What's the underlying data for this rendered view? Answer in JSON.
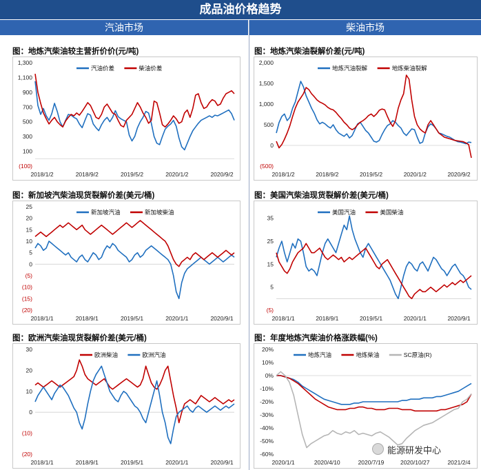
{
  "header": {
    "title": "成品油价格趋势"
  },
  "sections": {
    "left": "汽油市场",
    "right": "柴油市场"
  },
  "watermark": "能源研发中心",
  "chart_data": [
    {
      "id": "c1",
      "type": "line",
      "title": "图：地炼汽柴油较主营折价价(元/吨)",
      "yticks": [
        1300,
        1100,
        900,
        700,
        500,
        300,
        100,
        -100
      ],
      "ytick_labels": [
        "1,300",
        "1,100",
        "900",
        "700",
        "500",
        "300",
        "100",
        "(100)"
      ],
      "ylim": [
        -100,
        1300
      ],
      "xticks": [
        "2018/1/2",
        "2018/9/2",
        "2019/5/2",
        "2020/1/2",
        "2020/9/2"
      ],
      "series": [
        {
          "name": "汽油价差",
          "color": "#1f6fbf",
          "values": [
            1050,
            720,
            600,
            680,
            580,
            520,
            610,
            750,
            640,
            500,
            430,
            520,
            600,
            590,
            560,
            540,
            470,
            420,
            520,
            610,
            590,
            470,
            420,
            380,
            460,
            520,
            560,
            500,
            560,
            650,
            570,
            540,
            520,
            500,
            320,
            240,
            300,
            420,
            500,
            560,
            640,
            620,
            480,
            300,
            210,
            190,
            300,
            400,
            440,
            470,
            520,
            440,
            280,
            160,
            120,
            210,
            300,
            380,
            430,
            480,
            520,
            540,
            560,
            580,
            560,
            590,
            580,
            600,
            620,
            640,
            660,
            610,
            520
          ]
        },
        {
          "name": "柴油价差",
          "color": "#c00000",
          "values": [
            1150,
            900,
            750,
            620,
            540,
            470,
            520,
            560,
            500,
            460,
            430,
            510,
            560,
            600,
            580,
            620,
            590,
            640,
            700,
            760,
            720,
            640,
            560,
            540,
            600,
            700,
            740,
            680,
            620,
            600,
            520,
            450,
            430,
            520,
            560,
            600,
            680,
            760,
            700,
            620,
            560,
            480,
            520,
            780,
            760,
            620,
            460,
            430,
            470,
            520,
            580,
            540,
            480,
            500,
            620,
            660,
            560,
            680,
            860,
            880,
            760,
            680,
            700,
            760,
            800,
            780,
            720,
            740,
            820,
            880,
            900,
            920,
            880
          ]
        }
      ]
    },
    {
      "id": "c2",
      "type": "line",
      "title": "图：地炼汽柴油裂解价差(元/吨)",
      "yticks": [
        2000,
        1500,
        1000,
        500,
        0,
        -500
      ],
      "ytick_labels": [
        "2,000",
        "1,500",
        "1,000",
        "500",
        "0",
        "(500)"
      ],
      "ylim": [
        -500,
        2000
      ],
      "xticks": [
        "2018/1/2",
        "2018/9/2",
        "2019/5/2",
        "2020/1/2",
        "2020/9/2"
      ],
      "series": [
        {
          "name": "地炼汽油裂解",
          "color": "#1f6fbf",
          "values": [
            300,
            550,
            700,
            760,
            600,
            680,
            900,
            1050,
            1300,
            1550,
            1420,
            1200,
            1050,
            900,
            780,
            620,
            520,
            560,
            520,
            460,
            420,
            500,
            380,
            300,
            260,
            220,
            280,
            180,
            240,
            380,
            520,
            560,
            460,
            360,
            300,
            200,
            100,
            80,
            120,
            260,
            380,
            480,
            520,
            600,
            560,
            480,
            420,
            300,
            240,
            320,
            400,
            380,
            200,
            50,
            80,
            300,
            450,
            520,
            480,
            400,
            300,
            280,
            250,
            220,
            200,
            160,
            120,
            90,
            80,
            60,
            40,
            80,
            70
          ]
        },
        {
          "name": "地炼柴油裂解",
          "color": "#c00000",
          "values": [
            100,
            -60,
            20,
            150,
            300,
            480,
            700,
            900,
            1050,
            1150,
            1250,
            1400,
            1350,
            1250,
            1180,
            1100,
            1050,
            1020,
            980,
            920,
            880,
            860,
            800,
            720,
            650,
            560,
            500,
            420,
            380,
            420,
            500,
            560,
            600,
            650,
            720,
            760,
            700,
            760,
            850,
            880,
            860,
            700,
            560,
            460,
            600,
            900,
            1100,
            1250,
            1700,
            1600,
            1100,
            700,
            500,
            400,
            340,
            300,
            500,
            600,
            500,
            400,
            300,
            250,
            200,
            180,
            160,
            140,
            120,
            110,
            100,
            90,
            60,
            20,
            -300
          ]
        }
      ]
    },
    {
      "id": "c3",
      "type": "line",
      "title": "图：新加坡汽柴油现货裂解价差(美元/桶)",
      "yticks": [
        25,
        20,
        15,
        10,
        5,
        0,
        -5,
        -10,
        -15,
        -20
      ],
      "ytick_labels": [
        "25",
        "20",
        "15",
        "10",
        "5",
        "0",
        "(5)",
        "(10)",
        "(15)",
        "(20)"
      ],
      "ylim": [
        -20,
        25
      ],
      "xticks": [
        "2018/1/1",
        "2018/9/1",
        "2019/5/1",
        "2020/1/1",
        "2020/9/1"
      ],
      "series": [
        {
          "name": "新加坡汽油",
          "color": "#1f6fbf",
          "values": [
            7,
            9,
            8,
            6,
            7,
            10,
            9,
            8,
            7,
            6,
            5,
            4,
            5,
            3,
            2,
            1,
            3,
            4,
            2,
            1,
            3,
            5,
            4,
            2,
            3,
            6,
            8,
            7,
            9,
            8,
            6,
            5,
            4,
            3,
            1,
            2,
            4,
            5,
            3,
            4,
            6,
            7,
            8,
            7,
            6,
            5,
            4,
            3,
            2,
            0,
            -5,
            -12,
            -15,
            -8,
            -4,
            -2,
            -1,
            0,
            1,
            2,
            3,
            2,
            1,
            0,
            1,
            2,
            3,
            2,
            1,
            2,
            3,
            4,
            3
          ]
        },
        {
          "name": "新加坡柴油",
          "color": "#c00000",
          "values": [
            12,
            13,
            14,
            13,
            12,
            13,
            14,
            15,
            16,
            17,
            16,
            17,
            18,
            17,
            16,
            15,
            16,
            17,
            15,
            14,
            13,
            14,
            15,
            16,
            17,
            16,
            15,
            14,
            13,
            14,
            15,
            16,
            17,
            18,
            17,
            16,
            17,
            18,
            19,
            18,
            17,
            16,
            15,
            14,
            13,
            12,
            11,
            10,
            8,
            5,
            2,
            0,
            -1,
            1,
            2,
            3,
            2,
            4,
            5,
            4,
            3,
            2,
            3,
            4,
            5,
            4,
            3,
            4,
            5,
            6,
            5,
            4,
            5
          ]
        }
      ]
    },
    {
      "id": "c4",
      "type": "line",
      "title": "图：美国汽柴油现货裂解价差(美元/桶)",
      "yticks": [
        35,
        25,
        15,
        5,
        -5
      ],
      "ytick_labels": [
        "35",
        "25",
        "15",
        "5",
        "(5)"
      ],
      "ylim": [
        -5,
        40
      ],
      "xticks": [
        "2018/1/1",
        "2018/9/1",
        "2019/5/1",
        "2020/1/1",
        "2020/9/1"
      ],
      "series": [
        {
          "name": "美国汽油",
          "color": "#1f6fbf",
          "values": [
            18,
            22,
            25,
            20,
            16,
            20,
            24,
            22,
            26,
            25,
            20,
            14,
            12,
            13,
            12,
            10,
            15,
            20,
            24,
            26,
            24,
            22,
            20,
            24,
            28,
            32,
            30,
            36,
            30,
            26,
            23,
            20,
            18,
            22,
            24,
            22,
            20,
            18,
            16,
            14,
            12,
            10,
            8,
            5,
            2,
            0,
            5,
            10,
            14,
            16,
            15,
            13,
            12,
            15,
            16,
            14,
            12,
            15,
            18,
            17,
            15,
            13,
            12,
            10,
            12,
            14,
            15,
            13,
            11,
            10,
            8,
            5,
            4
          ]
        },
        {
          "name": "美国柴油",
          "color": "#c00000",
          "values": [
            20,
            16,
            14,
            12,
            11,
            13,
            16,
            18,
            20,
            21,
            22,
            24,
            22,
            20,
            20,
            21,
            22,
            20,
            18,
            17,
            18,
            19,
            18,
            17,
            18,
            16,
            17,
            18,
            17,
            18,
            19,
            20,
            21,
            22,
            20,
            18,
            16,
            14,
            13,
            15,
            16,
            17,
            15,
            13,
            11,
            9,
            7,
            5,
            3,
            1,
            0,
            2,
            3,
            4,
            3,
            3,
            4,
            5,
            4,
            3,
            4,
            5,
            6,
            5,
            6,
            7,
            6,
            7,
            8,
            7,
            8,
            9,
            10
          ]
        }
      ]
    },
    {
      "id": "c5",
      "type": "line",
      "title": "图：欧洲汽柴油现货裂解价差(美元/桶)",
      "yticks": [
        30,
        20,
        10,
        0,
        -10,
        -20
      ],
      "ytick_labels": [
        "30",
        "20",
        "10",
        "0",
        "(10)",
        "(20)"
      ],
      "ylim": [
        -20,
        30
      ],
      "xticks": [
        "2018/1/1",
        "2018/9/1",
        "2019/5/1",
        "2020/1/1",
        "2020/9/1"
      ],
      "series": [
        {
          "name": "欧洲柴油",
          "color": "#c00000",
          "values": [
            13,
            14,
            13,
            12,
            13,
            14,
            15,
            14,
            13,
            12,
            13,
            14,
            15,
            16,
            17,
            20,
            25,
            22,
            18,
            16,
            15,
            14,
            13,
            14,
            15,
            16,
            14,
            12,
            11,
            12,
            13,
            14,
            15,
            16,
            15,
            14,
            13,
            12,
            13,
            16,
            22,
            18,
            14,
            12,
            11,
            13,
            16,
            20,
            22,
            15,
            8,
            2,
            -5,
            0,
            4,
            5,
            6,
            5,
            4,
            6,
            8,
            7,
            6,
            5,
            6,
            7,
            6,
            5,
            4,
            5,
            6,
            5,
            6
          ]
        },
        {
          "name": "欧洲汽油",
          "color": "#1f6fbf",
          "values": [
            5,
            8,
            10,
            12,
            10,
            8,
            6,
            9,
            11,
            13,
            12,
            10,
            8,
            5,
            2,
            0,
            -5,
            -8,
            -3,
            4,
            10,
            15,
            18,
            20,
            22,
            18,
            14,
            10,
            8,
            6,
            5,
            8,
            10,
            9,
            7,
            5,
            3,
            2,
            0,
            -3,
            -5,
            0,
            5,
            10,
            15,
            8,
            0,
            -5,
            -12,
            -15,
            -8,
            -2,
            0,
            1,
            2,
            3,
            1,
            0,
            2,
            3,
            2,
            1,
            0,
            1,
            2,
            3,
            2,
            1,
            2,
            3,
            2,
            3,
            4
          ]
        }
      ]
    },
    {
      "id": "c6",
      "type": "line",
      "title": "图：年度地炼汽柴油价格涨跌幅(%)",
      "yticks": [
        20,
        10,
        0,
        -10,
        -20,
        -30,
        -40,
        -50,
        -60
      ],
      "ytick_labels": [
        "20%",
        "10%",
        "0%",
        "-10%",
        "-20%",
        "-30%",
        "-40%",
        "-50%",
        "-60%"
      ],
      "ylim": [
        -60,
        20
      ],
      "xticks": [
        "2020/1/1",
        "2020/4/10",
        "2020/7/19",
        "2020/10/27",
        "2021/2/4"
      ],
      "series": [
        {
          "name": "地炼汽油",
          "color": "#1f6fbf",
          "values": [
            0,
            0,
            -1,
            -2,
            -3,
            -5,
            -8,
            -10,
            -12,
            -14,
            -16,
            -18,
            -19,
            -20,
            -21,
            -22,
            -22,
            -22,
            -21,
            -21,
            -20,
            -20,
            -20,
            -20,
            -20,
            -20,
            -20,
            -20,
            -20,
            -19,
            -19,
            -18,
            -18,
            -18,
            -17,
            -17,
            -17,
            -16,
            -16,
            -15,
            -14,
            -13,
            -12,
            -10,
            -8,
            -6
          ]
        },
        {
          "name": "地炼柴油",
          "color": "#c00000",
          "values": [
            0,
            0,
            -1,
            -2,
            -4,
            -6,
            -9,
            -12,
            -15,
            -18,
            -20,
            -22,
            -24,
            -25,
            -26,
            -26,
            -26,
            -25,
            -25,
            -24,
            -24,
            -25,
            -25,
            -26,
            -26,
            -26,
            -25,
            -25,
            -25,
            -26,
            -26,
            -26,
            -27,
            -27,
            -27,
            -27,
            -27,
            -27,
            -26,
            -26,
            -25,
            -24,
            -23,
            -22,
            -20,
            -14
          ]
        },
        {
          "name": "SC原油(R)",
          "color": "#b5b5b5",
          "values": [
            0,
            3,
            0,
            -5,
            -15,
            -30,
            -45,
            -55,
            -52,
            -50,
            -48,
            -46,
            -45,
            -42,
            -44,
            -45,
            -43,
            -44,
            -42,
            -45,
            -44,
            -45,
            -46,
            -44,
            -43,
            -45,
            -47,
            -50,
            -53,
            -52,
            -48,
            -45,
            -42,
            -40,
            -38,
            -37,
            -36,
            -34,
            -32,
            -30,
            -28,
            -26,
            -25,
            -20,
            -18,
            -14
          ]
        }
      ]
    }
  ]
}
